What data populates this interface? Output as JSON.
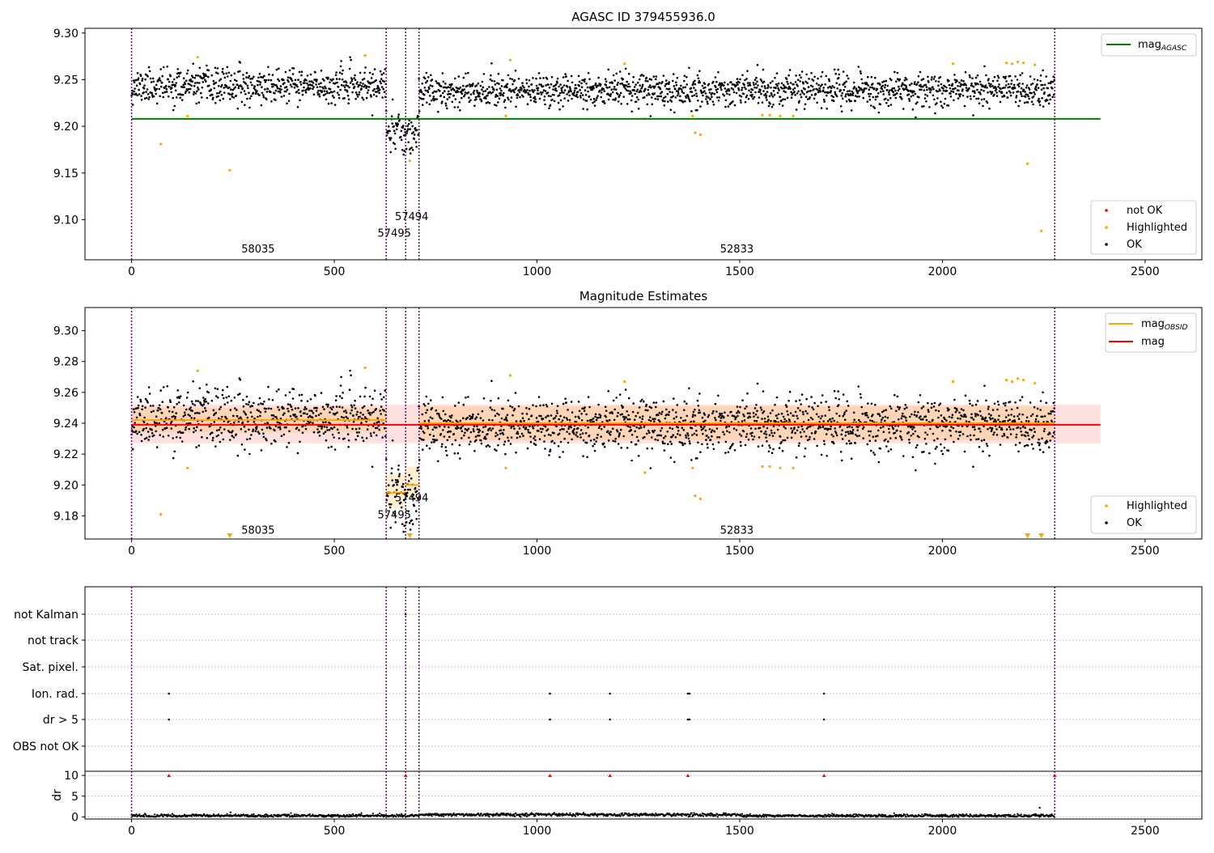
{
  "chart_data": [
    {
      "type": "scatter",
      "title": "AGASC ID 379455936.0",
      "xlim": [
        -115,
        2640
      ],
      "ylim": [
        9.057,
        9.305
      ],
      "xticks": [
        0,
        500,
        1000,
        1500,
        2000,
        2500
      ],
      "yticks": [
        9.1,
        9.15,
        9.2,
        9.25,
        9.3
      ],
      "ytick_labels": [
        "9.10",
        "9.15",
        "9.20",
        "9.25",
        "9.30"
      ],
      "obs_boundaries": [
        0,
        628,
        676,
        709,
        2277
      ],
      "obs_labels": [
        {
          "text": "58035",
          "x": 312,
          "y": 9.069
        },
        {
          "text": "57495",
          "x": 648,
          "y": 9.086
        },
        {
          "text": "57494",
          "x": 691,
          "y": 9.104
        },
        {
          "text": "52833",
          "x": 1493,
          "y": 9.069
        }
      ],
      "reference_lines": [
        {
          "name": "mag_AGASC",
          "label": "mag",
          "subscript": "AGASC",
          "value": 9.208,
          "x_range": [
            0,
            2390
          ],
          "color": "#008000"
        }
      ],
      "series_segments": [
        {
          "x_range": [
            0,
            628
          ],
          "mean": 9.243,
          "spread": 0.009
        },
        {
          "x_range": [
            628,
            709
          ],
          "mean": 9.196,
          "spread": 0.011
        },
        {
          "x_range": [
            709,
            2277
          ],
          "mean": 9.239,
          "spread": 0.009
        }
      ],
      "highlighted_points": [
        {
          "x": 72,
          "y": 9.181
        },
        {
          "x": 138,
          "y": 9.211
        },
        {
          "x": 163,
          "y": 9.274
        },
        {
          "x": 242,
          "y": 9.153
        },
        {
          "x": 576,
          "y": 9.276
        },
        {
          "x": 686,
          "y": 9.163
        },
        {
          "x": 923,
          "y": 9.211
        },
        {
          "x": 934,
          "y": 9.271
        },
        {
          "x": 1216,
          "y": 9.267
        },
        {
          "x": 1266,
          "y": 9.208
        },
        {
          "x": 1384,
          "y": 9.211
        },
        {
          "x": 1390,
          "y": 9.193
        },
        {
          "x": 1403,
          "y": 9.191
        },
        {
          "x": 1556,
          "y": 9.212
        },
        {
          "x": 1574,
          "y": 9.212
        },
        {
          "x": 1600,
          "y": 9.211
        },
        {
          "x": 1632,
          "y": 9.211
        },
        {
          "x": 2026,
          "y": 9.267
        },
        {
          "x": 2158,
          "y": 9.268
        },
        {
          "x": 2172,
          "y": 9.267
        },
        {
          "x": 2186,
          "y": 9.269
        },
        {
          "x": 2200,
          "y": 9.268
        },
        {
          "x": 2210,
          "y": 9.16
        },
        {
          "x": 2228,
          "y": 9.266
        },
        {
          "x": 2244,
          "y": 9.088
        }
      ],
      "legend_lines": [
        {
          "label": "mag",
          "subscript": "AGASC",
          "color": "#008000"
        }
      ],
      "legend_markers": [
        {
          "label": "not OK",
          "color": "#ff0000"
        },
        {
          "label": "Highlighted",
          "color": "#ffa500"
        },
        {
          "label": "OK",
          "color": "#000000"
        }
      ],
      "legend_positions": [
        "upper right",
        "lower right"
      ]
    },
    {
      "type": "scatter",
      "title": "Magnitude Estimates",
      "xlim": [
        -115,
        2640
      ],
      "ylim": [
        9.165,
        9.315
      ],
      "xticks": [
        0,
        500,
        1000,
        1500,
        2000,
        2500
      ],
      "yticks": [
        9.18,
        9.2,
        9.22,
        9.24,
        9.26,
        9.28,
        9.3
      ],
      "ytick_labels": [
        "9.18",
        "9.20",
        "9.22",
        "9.24",
        "9.26",
        "9.28",
        "9.30"
      ],
      "obs_boundaries": [
        0,
        628,
        676,
        709,
        2277
      ],
      "obs_labels": [
        {
          "text": "58035",
          "x": 312,
          "y": 9.171
        },
        {
          "text": "57495",
          "x": 648,
          "y": 9.181
        },
        {
          "text": "57494",
          "x": 691,
          "y": 9.192
        }
      ],
      "obs_labels_extra": [
        {
          "text": "52833",
          "x": 1493,
          "y": 9.171
        }
      ],
      "mag": {
        "value": 9.239,
        "band": [
          9.227,
          9.252
        ],
        "x_range": [
          0,
          2390
        ],
        "color": "#ff0000"
      },
      "mag_obsid": [
        {
          "x_range": [
            0,
            628
          ],
          "value": 9.242,
          "band": [
            9.234,
            9.25
          ]
        },
        {
          "x_range": [
            628,
            676
          ],
          "value": 9.195,
          "band": [
            9.185,
            9.207
          ]
        },
        {
          "x_range": [
            676,
            709
          ],
          "value": 9.2,
          "band": [
            9.192,
            9.212
          ]
        },
        {
          "x_range": [
            709,
            2277
          ],
          "value": 9.24,
          "band": [
            9.229,
            9.251
          ]
        }
      ],
      "series_segments": [
        {
          "x_range": [
            0,
            628
          ],
          "mean": 9.243,
          "spread": 0.009
        },
        {
          "x_range": [
            628,
            709
          ],
          "mean": 9.196,
          "spread": 0.011
        },
        {
          "x_range": [
            709,
            2277
          ],
          "mean": 9.239,
          "spread": 0.009
        }
      ],
      "highlighted_points": [
        {
          "x": 72,
          "y": 9.181
        },
        {
          "x": 138,
          "y": 9.211
        },
        {
          "x": 163,
          "y": 9.274
        },
        {
          "x": 576,
          "y": 9.276
        },
        {
          "x": 923,
          "y": 9.211
        },
        {
          "x": 934,
          "y": 9.271
        },
        {
          "x": 1216,
          "y": 9.267
        },
        {
          "x": 1266,
          "y": 9.208
        },
        {
          "x": 1384,
          "y": 9.211
        },
        {
          "x": 1390,
          "y": 9.193
        },
        {
          "x": 1403,
          "y": 9.191
        },
        {
          "x": 1556,
          "y": 9.212
        },
        {
          "x": 1574,
          "y": 9.212
        },
        {
          "x": 1600,
          "y": 9.211
        },
        {
          "x": 1632,
          "y": 9.211
        },
        {
          "x": 2026,
          "y": 9.267
        },
        {
          "x": 2158,
          "y": 9.268
        },
        {
          "x": 2172,
          "y": 9.267
        },
        {
          "x": 2186,
          "y": 9.269
        },
        {
          "x": 2200,
          "y": 9.268
        },
        {
          "x": 2228,
          "y": 9.266
        }
      ],
      "offscale_low_markers": [
        242,
        686,
        2210,
        2244
      ],
      "legend_lines": [
        {
          "label": "mag",
          "subscript": "OBSID",
          "color": "#ffa500"
        },
        {
          "label": "mag",
          "subscript": "",
          "color": "#ff0000"
        }
      ],
      "legend_markers": [
        {
          "label": "Highlighted",
          "color": "#ffa500"
        },
        {
          "label": "OK",
          "color": "#000000"
        }
      ],
      "legend_positions": [
        "upper right",
        "lower right"
      ]
    },
    {
      "type": "scatter",
      "title": "",
      "xlim": [
        -115,
        2640
      ],
      "xticks": [
        0,
        500,
        1000,
        1500,
        2000,
        2500
      ],
      "obs_boundaries": [
        0,
        628,
        676,
        709,
        2277
      ],
      "flag_rows": [
        "not Kalman",
        "not track",
        "Sat. pixel.",
        "Ion. rad.",
        "dr > 5",
        "OBS not OK"
      ],
      "flag_points": {
        "not Kalman": [
          676
        ],
        "not track": [],
        "Sat. pixel.": [],
        "Ion. rad.": [
          92,
          1032,
          1180,
          1372,
          1376,
          1708
        ],
        "dr > 5": [
          92,
          1032,
          1180,
          1372,
          1376,
          1708
        ],
        "OBS not OK": []
      },
      "dr": {
        "ylabel": "dr",
        "ylim": [
          -0.5,
          11
        ],
        "yticks": [
          0,
          5,
          10
        ],
        "ytick_labels": [
          "0",
          "5",
          "10"
        ],
        "high_markers": [
          92,
          676,
          1032,
          1180,
          1372,
          2277,
          1708
        ],
        "high_value": 10
      }
    }
  ]
}
